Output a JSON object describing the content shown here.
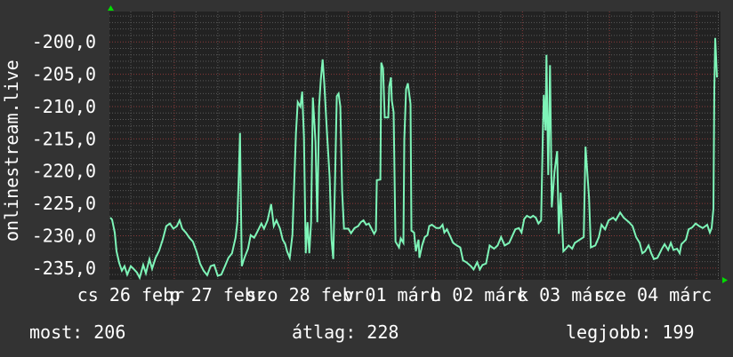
{
  "chart_data": {
    "type": "line",
    "ylabel": "onlinestream.live",
    "ylim": [
      -236.8,
      -195.3
    ],
    "xlim": [
      "02-26 06:07",
      "03-05 06:37"
    ],
    "y_ticks": [
      -200,
      -205,
      -210,
      -215,
      -220,
      -225,
      -230,
      -235
    ],
    "y_tick_labels": [
      "-200,0",
      "-205,0",
      "-210,0",
      "-215,0",
      "-220,0",
      "-225,0",
      "-230,0",
      "-235,0"
    ],
    "x_tick_labels": [
      {
        "label": "cs 26 febr",
        "at": "02-26 12:00"
      },
      {
        "label": "p 27 febr",
        "at": "02-27 12:00"
      },
      {
        "label": "szo 28 febr",
        "at": "02-28 12:00"
      },
      {
        "label": "v 01 márc",
        "at": "03-01 12:00"
      },
      {
        "label": "h 02 márc",
        "at": "03-02 12:00"
      },
      {
        "label": "k 03 márc",
        "at": "03-03 12:00"
      },
      {
        "label": "sze 04 márc",
        "at": "03-04 12:00"
      }
    ],
    "grid": true,
    "colors": {
      "background": "#333333",
      "plot": "#222222",
      "line": "#7ef5b8",
      "major_grid": "#8a3a3a",
      "minor_grid": "#5a5a5a",
      "arrow": "#00dd00"
    },
    "series": [
      {
        "points": [
          [
            "02-26 06:22",
            -227.2
          ],
          [
            "02-26 06:51",
            -227.5
          ],
          [
            "02-26 07:36",
            -229.5
          ],
          [
            "02-26 08:05",
            -232.4
          ],
          [
            "02-26 08:49",
            -234.2
          ],
          [
            "02-26 09:33",
            -235.4
          ],
          [
            "02-26 10:17",
            -234.7
          ],
          [
            "02-26 11:01",
            -236
          ],
          [
            "02-26 12:00",
            -234.7
          ],
          [
            "02-26 12:44",
            -235.1
          ],
          [
            "02-26 13:43",
            -235.7
          ],
          [
            "02-26 14:27",
            -236.5
          ],
          [
            "02-26 15:26",
            -234.5
          ],
          [
            "02-26 16:10",
            -235.8
          ],
          [
            "02-26 17:09",
            -233.6
          ],
          [
            "02-26 17:53",
            -235.1
          ],
          [
            "02-26 18:51",
            -233.4
          ],
          [
            "02-26 19:50",
            -232.3
          ],
          [
            "02-26 20:49",
            -230.6
          ],
          [
            "02-26 21:48",
            -228.5
          ],
          [
            "02-26 22:47",
            -228.1
          ],
          [
            "02-26 23:45",
            -228.9
          ],
          [
            "02-27 00:44",
            -228.5
          ],
          [
            "02-27 01:28",
            -227.6
          ],
          [
            "02-27 02:12",
            -228.9
          ],
          [
            "02-27 03:11",
            -229.5
          ],
          [
            "02-27 04:10",
            -230.3
          ],
          [
            "02-27 05:09",
            -230.9
          ],
          [
            "02-27 06:07",
            -232.4
          ],
          [
            "02-27 07:06",
            -234.3
          ],
          [
            "02-27 08:05",
            -235.4
          ],
          [
            "02-27 09:04",
            -236.1
          ],
          [
            "02-27 10:02",
            -234.7
          ],
          [
            "02-27 11:01",
            -234.5
          ],
          [
            "02-27 12:00",
            -236.2
          ],
          [
            "02-27 12:59",
            -236
          ],
          [
            "02-27 13:58",
            -234.7
          ],
          [
            "02-27 14:56",
            -233.4
          ],
          [
            "02-27 15:55",
            -232.7
          ],
          [
            "02-27 16:54",
            -230.3
          ],
          [
            "02-27 17:23",
            -227.9
          ],
          [
            "02-27 18:07",
            -214.1
          ],
          [
            "02-27 18:37",
            -234.7
          ],
          [
            "02-27 19:21",
            -233.4
          ],
          [
            "02-27 20:20",
            -232
          ],
          [
            "02-27 21:04",
            -229.9
          ],
          [
            "02-27 22:02",
            -230.3
          ],
          [
            "02-27 22:47",
            -229.5
          ],
          [
            "02-28 00:00",
            -228.1
          ],
          [
            "02-28 00:44",
            -228.9
          ],
          [
            "02-28 01:43",
            -227.6
          ],
          [
            "02-28 02:42",
            -225.1
          ],
          [
            "02-28 03:26",
            -228.5
          ],
          [
            "02-28 04:10",
            -227.6
          ],
          [
            "02-28 05:09",
            -228.9
          ],
          [
            "02-28 05:53",
            -230.6
          ],
          [
            "02-28 06:37",
            -231.3
          ],
          [
            "02-28 07:06",
            -232.4
          ],
          [
            "02-28 07:50",
            -233.4
          ],
          [
            "02-28 08:34",
            -229.9
          ],
          [
            "02-28 09:33",
            -214.1
          ],
          [
            "02-28 10:02",
            -209.3
          ],
          [
            "02-28 10:47",
            -210
          ],
          [
            "02-28 11:16",
            -207.7
          ],
          [
            "02-28 11:45",
            -214.8
          ],
          [
            "02-28 12:15",
            -232.7
          ],
          [
            "02-28 12:44",
            -227.9
          ],
          [
            "02-28 13:13",
            -232.7
          ],
          [
            "02-28 13:43",
            -227.9
          ],
          [
            "02-28 14:12",
            -208.6
          ],
          [
            "02-28 14:56",
            -215.5
          ],
          [
            "02-28 15:26",
            -227.9
          ],
          [
            "02-28 15:55",
            -210
          ],
          [
            "02-28 16:24",
            -205.9
          ],
          [
            "02-28 16:54",
            -202.7
          ],
          [
            "02-28 17:23",
            -206.6
          ],
          [
            "02-28 18:07",
            -214.1
          ],
          [
            "02-28 18:51",
            -221
          ],
          [
            "02-28 19:21",
            -230.6
          ],
          [
            "02-28 19:50",
            -233.6
          ],
          [
            "02-28 20:20",
            -221
          ],
          [
            "02-28 20:49",
            -208.4
          ],
          [
            "02-28 21:18",
            -208
          ],
          [
            "02-28 21:48",
            -210
          ],
          [
            "02-28 22:17",
            -223.1
          ],
          [
            "02-28 22:47",
            -228.9
          ],
          [
            "02-28 23:45",
            -228.9
          ],
          [
            "03-01 00:00",
            -228.9
          ],
          [
            "03-01 00:44",
            -229.6
          ],
          [
            "03-01 01:43",
            -228.8
          ],
          [
            "03-01 02:42",
            -228.5
          ],
          [
            "03-01 03:26",
            -227.9
          ],
          [
            "03-01 04:10",
            -227.6
          ],
          [
            "03-01 04:54",
            -228.3
          ],
          [
            "03-01 05:38",
            -228.1
          ],
          [
            "03-01 06:22",
            -228.9
          ],
          [
            "03-01 07:06",
            -229.7
          ],
          [
            "03-01 07:36",
            -229.2
          ],
          [
            "03-01 07:50",
            -221.4
          ],
          [
            "03-01 08:49",
            -221.3
          ],
          [
            "03-01 09:04",
            -203.2
          ],
          [
            "03-01 09:33",
            -204.1
          ],
          [
            "03-01 10:02",
            -211.7
          ],
          [
            "03-01 11:01",
            -211.7
          ],
          [
            "03-01 11:16",
            -206.9
          ],
          [
            "03-01 11:45",
            -205.5
          ],
          [
            "03-01 12:00",
            -209.1
          ],
          [
            "03-01 12:29",
            -210.9
          ],
          [
            "03-01 12:59",
            -230.9
          ],
          [
            "03-01 13:58",
            -231.8
          ],
          [
            "03-01 14:27",
            -230.4
          ],
          [
            "03-01 15:11",
            -231.1
          ],
          [
            "03-01 15:26",
            -215.1
          ],
          [
            "03-01 15:55",
            -207.3
          ],
          [
            "03-01 16:24",
            -206.4
          ],
          [
            "03-01 17:09",
            -209.6
          ],
          [
            "03-01 17:23",
            -229.2
          ],
          [
            "03-01 18:07",
            -229.5
          ],
          [
            "03-01 18:37",
            -232.4
          ],
          [
            "03-01 19:21",
            -230.6
          ],
          [
            "03-01 19:36",
            -233.4
          ],
          [
            "03-01 20:20",
            -231.5
          ],
          [
            "03-01 21:04",
            -230.2
          ],
          [
            "03-01 21:48",
            -229.9
          ],
          [
            "03-01 22:17",
            -228.5
          ],
          [
            "03-01 23:01",
            -228.3
          ],
          [
            "03-02 00:15",
            -228.8
          ],
          [
            "03-02 01:13",
            -228.8
          ],
          [
            "03-02 01:58",
            -228.3
          ],
          [
            "03-02 02:27",
            -229.5
          ],
          [
            "03-02 03:11",
            -229
          ],
          [
            "03-02 04:10",
            -230.2
          ],
          [
            "03-02 04:54",
            -231.1
          ],
          [
            "03-02 05:53",
            -231.5
          ],
          [
            "03-02 06:51",
            -231.8
          ],
          [
            "03-02 07:36",
            -233.8
          ],
          [
            "03-02 08:34",
            -234.1
          ],
          [
            "03-02 09:48",
            -234.7
          ],
          [
            "03-02 10:32",
            -235.2
          ],
          [
            "03-02 11:31",
            -234.1
          ],
          [
            "03-02 12:15",
            -235.2
          ],
          [
            "03-02 12:59",
            -234.5
          ],
          [
            "03-02 13:58",
            -234.3
          ],
          [
            "03-02 14:56",
            -231.5
          ],
          [
            "03-02 16:10",
            -232
          ],
          [
            "03-02 17:09",
            -231.5
          ],
          [
            "03-02 18:07",
            -230.2
          ],
          [
            "03-02 19:06",
            -231.5
          ],
          [
            "03-02 20:20",
            -231.1
          ],
          [
            "03-02 21:18",
            -229.9
          ],
          [
            "03-02 22:02",
            -229
          ],
          [
            "03-02 23:01",
            -228.8
          ],
          [
            "03-02 23:45",
            -229.5
          ],
          [
            "03-03 00:29",
            -227.4
          ],
          [
            "03-03 01:13",
            -226.9
          ],
          [
            "03-03 02:12",
            -227.2
          ],
          [
            "03-03 02:56",
            -226.9
          ],
          [
            "03-03 03:40",
            -227.2
          ],
          [
            "03-03 04:24",
            -228.1
          ],
          [
            "03-03 05:09",
            -227.6
          ],
          [
            "03-03 05:38",
            -213.7
          ],
          [
            "03-03 05:53",
            -208.2
          ],
          [
            "03-03 06:22",
            -213.7
          ],
          [
            "03-03 06:37",
            -202
          ],
          [
            "03-03 07:06",
            -220.6
          ],
          [
            "03-03 07:36",
            -203.6
          ],
          [
            "03-03 08:05",
            -225.6
          ],
          [
            "03-03 08:49",
            -220.1
          ],
          [
            "03-03 09:33",
            -216.9
          ],
          [
            "03-03 10:02",
            -229.7
          ],
          [
            "03-03 10:32",
            -223.3
          ],
          [
            "03-03 11:16",
            -232.4
          ],
          [
            "03-03 12:00",
            -232
          ],
          [
            "03-03 12:44",
            -231.5
          ],
          [
            "03-03 13:43",
            -232
          ],
          [
            "03-03 14:27",
            -231.1
          ],
          [
            "03-03 16:54",
            -230.2
          ],
          [
            "03-03 17:23",
            -216.2
          ],
          [
            "03-03 18:22",
            -224.2
          ],
          [
            "03-03 18:51",
            -231.8
          ],
          [
            "03-03 20:05",
            -231.5
          ],
          [
            "03-03 21:04",
            -230.2
          ],
          [
            "03-03 21:48",
            -228.3
          ],
          [
            "03-03 22:47",
            -229
          ],
          [
            "03-03 23:45",
            -227.6
          ],
          [
            "03-04 00:59",
            -227.2
          ],
          [
            "03-04 01:43",
            -227.6
          ],
          [
            "03-04 02:56",
            -226.4
          ],
          [
            "03-04 03:55",
            -227.2
          ],
          [
            "03-04 05:23",
            -227.9
          ],
          [
            "03-04 06:22",
            -228.5
          ],
          [
            "03-04 07:21",
            -230.2
          ],
          [
            "03-04 08:20",
            -231.1
          ],
          [
            "03-04 09:04",
            -232.7
          ],
          [
            "03-04 09:48",
            -232.4
          ],
          [
            "03-04 10:47",
            -231.5
          ],
          [
            "03-04 11:31",
            -232.7
          ],
          [
            "03-04 12:15",
            -233.6
          ],
          [
            "03-04 13:13",
            -233.4
          ],
          [
            "03-04 14:27",
            -232
          ],
          [
            "03-04 15:11",
            -231.3
          ],
          [
            "03-04 16:10",
            -232.2
          ],
          [
            "03-04 16:54",
            -231.1
          ],
          [
            "03-04 17:38",
            -232.2
          ],
          [
            "03-04 18:37",
            -232
          ],
          [
            "03-04 19:21",
            -232.7
          ],
          [
            "03-04 19:50",
            -231.3
          ],
          [
            "03-04 21:04",
            -230.6
          ],
          [
            "03-04 21:48",
            -229
          ],
          [
            "03-04 22:47",
            -228.7
          ],
          [
            "03-04 23:45",
            -228.1
          ],
          [
            "03-05 00:44",
            -228.5
          ],
          [
            "03-05 01:43",
            -228.8
          ],
          [
            "03-05 02:56",
            -228.3
          ],
          [
            "03-05 03:40",
            -229.5
          ],
          [
            "03-05 04:10",
            -228.8
          ],
          [
            "03-05 04:39",
            -225.8
          ],
          [
            "03-05 04:54",
            -207.3
          ],
          [
            "03-05 05:09",
            -199.4
          ],
          [
            "03-05 05:38",
            -205.5
          ]
        ]
      }
    ]
  },
  "legend": {
    "current": "most: 206",
    "average": "átlag: 228",
    "best": "legjobb: 199"
  }
}
